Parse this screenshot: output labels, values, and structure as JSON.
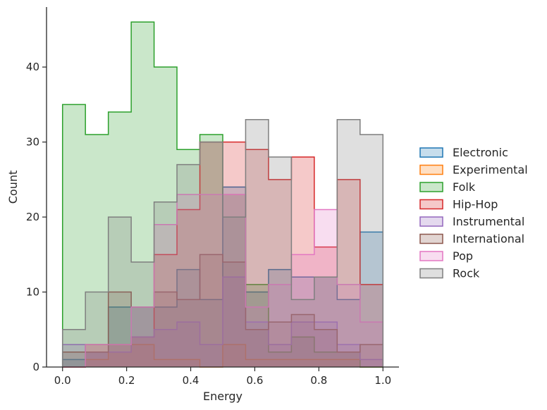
{
  "chart_data": {
    "type": "histogram",
    "title": "",
    "xlabel": "Energy",
    "ylabel": "Count",
    "xlim": [
      -0.05,
      1.05
    ],
    "ylim": [
      0,
      48
    ],
    "xticks": [
      0.0,
      0.2,
      0.4,
      0.6,
      0.8,
      1.0
    ],
    "xtick_labels": [
      "0.0",
      "0.2",
      "0.4",
      "0.6",
      "0.8",
      "1.0"
    ],
    "yticks": [
      0,
      10,
      20,
      30,
      40
    ],
    "ytick_labels": [
      "0",
      "10",
      "20",
      "30",
      "40"
    ],
    "bin_edges": [
      0.0,
      0.0714,
      0.1429,
      0.2143,
      0.2857,
      0.3571,
      0.4286,
      0.5,
      0.5714,
      0.6429,
      0.7143,
      0.7857,
      0.8571,
      0.9286,
      1.0
    ],
    "grid": false,
    "legend_position": "right",
    "series": [
      {
        "name": "Electronic",
        "color": "#1f77b4",
        "values": [
          1,
          2,
          8,
          8,
          8,
          13,
          9,
          24,
          10,
          13,
          12,
          12,
          9,
          18
        ]
      },
      {
        "name": "Experimental",
        "color": "#ff7f0e",
        "values": [
          0,
          1,
          2,
          3,
          1,
          1,
          0,
          3,
          1,
          1,
          1,
          1,
          1,
          0
        ]
      },
      {
        "name": "Folk",
        "color": "#2ca02c",
        "values": [
          35,
          31,
          34,
          46,
          40,
          29,
          31,
          23,
          11,
          2,
          4,
          2,
          2,
          0
        ]
      },
      {
        "name": "Hip-Hop",
        "color": "#d62728",
        "values": [
          0,
          3,
          3,
          4,
          15,
          21,
          30,
          30,
          29,
          25,
          28,
          16,
          25,
          11
        ]
      },
      {
        "name": "Instrumental",
        "color": "#9467bd",
        "values": [
          3,
          2,
          2,
          4,
          5,
          6,
          3,
          12,
          6,
          3,
          6,
          6,
          3,
          1
        ]
      },
      {
        "name": "International",
        "color": "#8c564b",
        "values": [
          2,
          2,
          10,
          8,
          10,
          9,
          15,
          14,
          5,
          6,
          7,
          5,
          2,
          3
        ]
      },
      {
        "name": "Pop",
        "color": "#e377c2",
        "values": [
          0,
          3,
          3,
          8,
          19,
          23,
          23,
          23,
          8,
          11,
          15,
          21,
          11,
          6
        ]
      },
      {
        "name": "Rock",
        "color": "#7f7f7f",
        "values": [
          5,
          10,
          20,
          14,
          22,
          27,
          30,
          20,
          33,
          28,
          9,
          12,
          33,
          31
        ]
      }
    ]
  }
}
